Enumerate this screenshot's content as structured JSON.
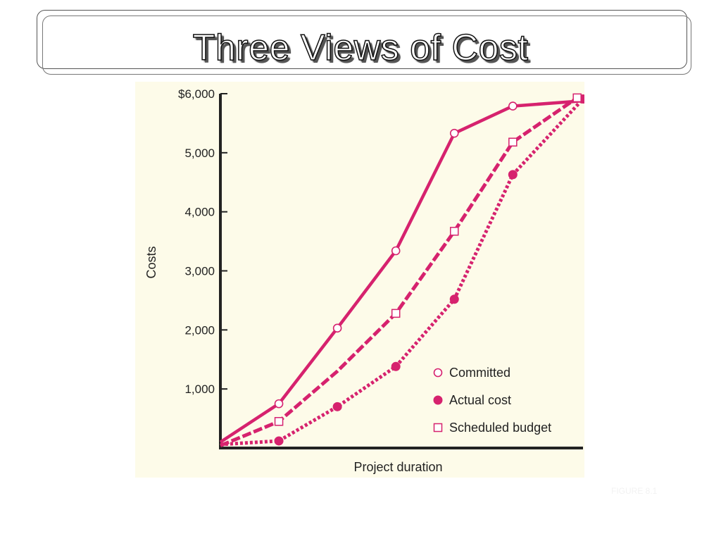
{
  "slide": {
    "title": "Three Views of Cost",
    "figure_note": "FIGURE 8.1"
  },
  "colors": {
    "series": "#d6226e",
    "panel_background": "#fdfbe9",
    "axis": "#222222"
  },
  "chart_data": {
    "type": "line",
    "title": "",
    "xlabel": "Project duration",
    "ylabel": "Costs",
    "x_ticks_visible": false,
    "xlim": [
      0,
      6.2
    ],
    "ylim": [
      0,
      6000
    ],
    "y_ticks": [
      1000,
      2000,
      3000,
      4000,
      5000,
      6000
    ],
    "y_tick_labels": [
      "1,000",
      "2,000",
      "3,000",
      "4,000",
      "5,000",
      "$6,000"
    ],
    "grid": false,
    "legend_position": "bottom-right",
    "series": [
      {
        "name": "Committed",
        "line_style": "solid",
        "marker": "open-circle",
        "x": [
          0,
          1,
          2,
          3,
          4,
          5,
          6.2
        ],
        "y": [
          100,
          750,
          2030,
          3340,
          5330,
          5790,
          5880
        ],
        "marked": [
          false,
          true,
          true,
          true,
          true,
          true,
          false
        ]
      },
      {
        "name": "Actual cost",
        "line_style": "dotted",
        "marker": "filled-circle",
        "x": [
          0,
          1,
          2,
          3,
          4,
          5,
          6.2
        ],
        "y": [
          60,
          120,
          700,
          1380,
          2520,
          4630,
          5910
        ],
        "marked": [
          false,
          true,
          true,
          true,
          true,
          true,
          true
        ]
      },
      {
        "name": "Scheduled budget",
        "line_style": "dashed",
        "marker": "open-square",
        "x": [
          0,
          1,
          2,
          3,
          4,
          5,
          6.1
        ],
        "y": [
          40,
          450,
          1300,
          2280,
          3670,
          5180,
          5930
        ],
        "marked": [
          false,
          true,
          false,
          true,
          true,
          true,
          true
        ]
      }
    ]
  }
}
